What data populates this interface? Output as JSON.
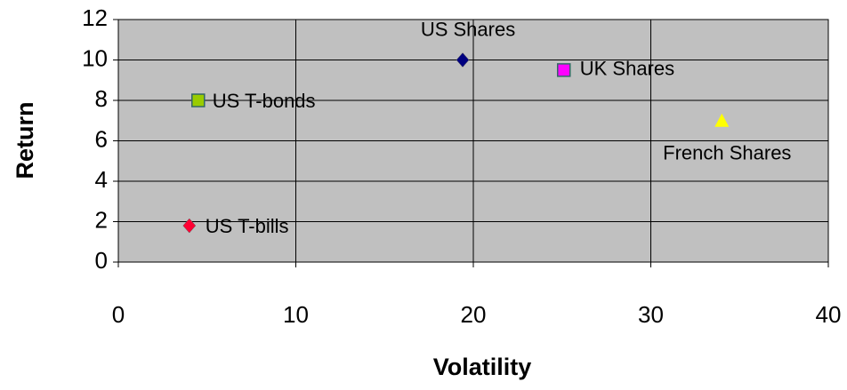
{
  "chart_data": {
    "type": "scatter",
    "x_label": "Volatility",
    "y_label": "Return",
    "xlim": [
      0,
      40
    ],
    "xticks": [
      0,
      10,
      20,
      30,
      40
    ],
    "ylim": [
      0,
      12
    ],
    "yticks": [
      0,
      2,
      4,
      6,
      8,
      10,
      12
    ],
    "grid": true,
    "background": "#c0c0c0",
    "series": [
      {
        "name": "US T-bills",
        "color": "#ff0033",
        "marker": "diamond",
        "x": [
          4
        ],
        "values": [
          1.8
        ]
      },
      {
        "name": "US T-bonds",
        "color": "#99cc00",
        "marker": "square",
        "x": [
          4.5
        ],
        "values": [
          8
        ]
      },
      {
        "name": "US Shares",
        "color": "#000080",
        "marker": "diamond",
        "x": [
          19.4
        ],
        "values": [
          10
        ]
      },
      {
        "name": "UK Shares",
        "color": "#ff00ff",
        "marker": "square",
        "x": [
          25.1
        ],
        "values": [
          9.5
        ]
      },
      {
        "name": "French Shares",
        "color": "#ffff00",
        "marker": "triangle",
        "x": [
          34
        ],
        "values": [
          7
        ]
      }
    ]
  }
}
